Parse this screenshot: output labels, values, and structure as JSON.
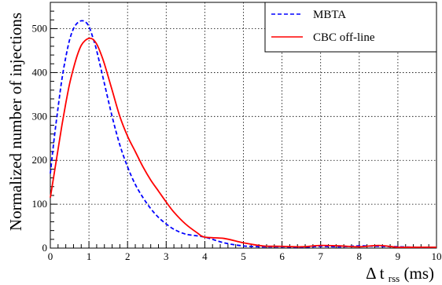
{
  "chart_data": {
    "type": "line",
    "title": "",
    "xlabel": "Δ t",
    "xlabel_sub": "rss",
    "xlabel_unit": " (ms)",
    "ylabel": "Normalized number of injections",
    "xlim": [
      0,
      10
    ],
    "ylim": [
      0,
      560
    ],
    "xticks": [
      0,
      1,
      2,
      3,
      4,
      5,
      6,
      7,
      8,
      9,
      10
    ],
    "yticks": [
      0,
      100,
      200,
      300,
      400,
      500
    ],
    "grid": true,
    "legend_position": "top-right",
    "series": [
      {
        "name": "MBTA",
        "color": "#0000ff",
        "style": "dashed",
        "x": [
          0,
          0.1,
          0.2,
          0.3,
          0.4,
          0.5,
          0.6,
          0.7,
          0.8,
          0.9,
          1.0,
          1.1,
          1.2,
          1.4,
          1.6,
          1.8,
          2.0,
          2.2,
          2.4,
          2.6,
          2.8,
          3.0,
          3.2,
          3.5,
          4.0,
          4.5,
          5.0,
          5.5,
          6.0,
          6.5,
          7.0,
          7.5,
          8.0,
          8.5,
          9.0,
          9.5,
          10.0
        ],
        "y": [
          170,
          250,
          320,
          385,
          435,
          475,
          500,
          513,
          518,
          516,
          505,
          480,
          450,
          375,
          300,
          235,
          185,
          145,
          115,
          90,
          70,
          55,
          43,
          32,
          25,
          12,
          5,
          3,
          3,
          2,
          4,
          3,
          5,
          4,
          3,
          2,
          2
        ]
      },
      {
        "name": "CBC off-line",
        "color": "#ff0000",
        "style": "solid",
        "x": [
          0,
          0.1,
          0.2,
          0.3,
          0.4,
          0.5,
          0.6,
          0.7,
          0.8,
          0.9,
          1.0,
          1.1,
          1.2,
          1.3,
          1.4,
          1.6,
          1.8,
          2.0,
          2.2,
          2.4,
          2.6,
          2.8,
          3.0,
          3.2,
          3.5,
          3.8,
          4.0,
          4.5,
          5.0,
          5.5,
          6.0,
          6.5,
          7.0,
          7.5,
          8.0,
          8.5,
          9.0,
          9.5,
          10.0
        ],
        "y": [
          115,
          170,
          225,
          280,
          330,
          375,
          410,
          440,
          462,
          473,
          478,
          476,
          465,
          445,
          420,
          360,
          300,
          255,
          220,
          185,
          155,
          130,
          105,
          82,
          55,
          35,
          25,
          22,
          12,
          5,
          4,
          3,
          6,
          5,
          3,
          6,
          2,
          2,
          2
        ]
      }
    ]
  }
}
